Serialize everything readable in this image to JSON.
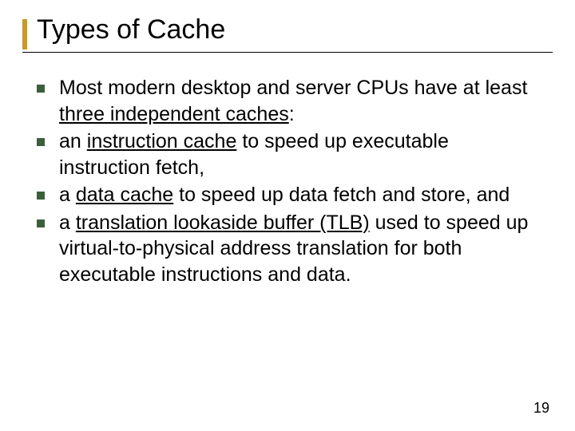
{
  "slide": {
    "title": "Types of Cache",
    "accent_color": "#c59a2f",
    "bullet_color": "#3b5f3b",
    "underline_color": "#000000",
    "background_color": "#ffffff",
    "title_fontsize": 34,
    "body_fontsize": 25,
    "bullets": [
      {
        "pre": "Most modern desktop and server CPUs have at least ",
        "underlined": "three independent caches",
        "post": ":"
      },
      {
        "pre": "an ",
        "underlined": "instruction cache",
        "post": " to speed up executable instruction fetch,"
      },
      {
        "pre": "a ",
        "underlined": "data cache",
        "post": " to speed up data fetch and store, and"
      },
      {
        "pre": "a ",
        "underlined": "translation lookaside buffer (TLB)",
        "post": " used to speed up virtual-to-physical address translation for both executable instructions and data."
      }
    ],
    "page_number": "19"
  }
}
